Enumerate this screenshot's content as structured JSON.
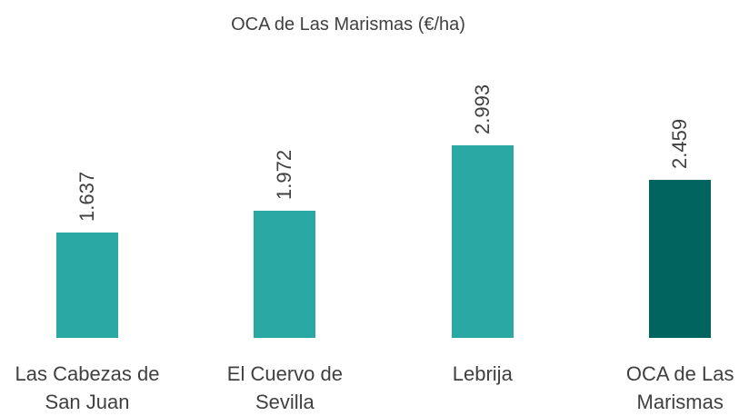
{
  "chart_data": {
    "type": "bar",
    "title": "OCA de Las Marismas (€/ha)",
    "categories": [
      "Las Cabezas de San Juan",
      "El Cuervo de Sevilla",
      "Lebrija",
      "OCA de Las Marismas"
    ],
    "values": [
      1637,
      1972,
      2993,
      2459
    ],
    "value_labels": [
      "1.637",
      "1.972",
      "2.993",
      "2.459"
    ],
    "colors": [
      "#2aa8a4",
      "#2aa8a4",
      "#2aa8a4",
      "#00655f"
    ]
  }
}
